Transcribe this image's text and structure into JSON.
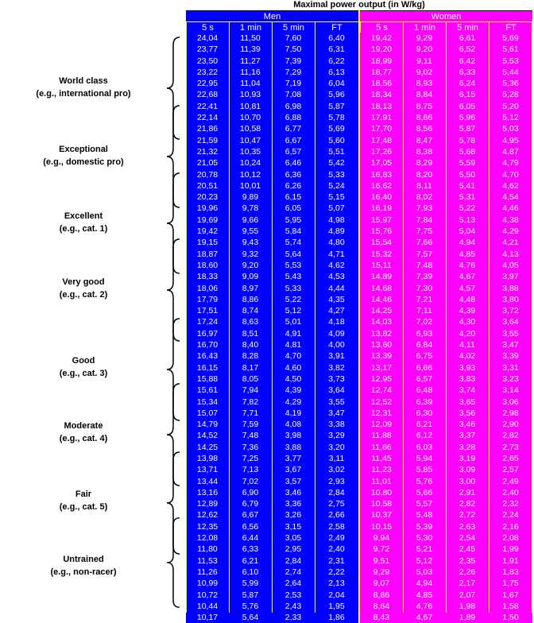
{
  "title": "Maximal power output (in W/kg)",
  "groups": {
    "men": "Men",
    "women": "Women"
  },
  "columns": [
    "5 s",
    "1 min",
    "5 min",
    "FT"
  ],
  "colors": {
    "men": "#0000ff",
    "women": "#ff00ff",
    "grid": "#ffff00"
  },
  "categories": [
    {
      "name": "World class",
      "example": "(e.g., international pro)"
    },
    {
      "name": "Exceptional",
      "example": "(e.g., domestic pro)"
    },
    {
      "name": "Excellent",
      "example": "(e.g., cat. 1)"
    },
    {
      "name": "Very good",
      "example": "(e.g., cat. 2)"
    },
    {
      "name": "Good",
      "example": "(e.g., cat. 3)"
    },
    {
      "name": "Moderate",
      "example": "(e.g., cat. 4)"
    },
    {
      "name": "Fair",
      "example": "(e.g., cat. 5)"
    },
    {
      "name": "Untrained",
      "example": "(e.g., non-racer)"
    }
  ],
  "rows": [
    [
      "24,04",
      "11,50",
      "7,60",
      "6,40",
      "19,42",
      "9,29",
      "6,61",
      "5,69"
    ],
    [
      "23,77",
      "11,39",
      "7,50",
      "6,31",
      "19,20",
      "9,20",
      "6,52",
      "5,61"
    ],
    [
      "23,50",
      "11,27",
      "7,39",
      "6,22",
      "18,99",
      "9,11",
      "6,42",
      "5,53"
    ],
    [
      "23,22",
      "11,16",
      "7,29",
      "6,13",
      "18,77",
      "9,02",
      "6,33",
      "5,44"
    ],
    [
      "22,95",
      "11,04",
      "7,19",
      "6,04",
      "18,56",
      "8,93",
      "6,24",
      "5,36"
    ],
    [
      "22,68",
      "10,93",
      "7,08",
      "5,96",
      "18,34",
      "8,84",
      "6,15",
      "5,28"
    ],
    [
      "22,41",
      "10,81",
      "6,98",
      "5,87",
      "18,13",
      "8,75",
      "6,05",
      "5,20"
    ],
    [
      "22,14",
      "10,70",
      "6,88",
      "5,78",
      "17,91",
      "8,66",
      "5,96",
      "5,12"
    ],
    [
      "21,86",
      "10,58",
      "6,77",
      "5,69",
      "17,70",
      "8,56",
      "5,87",
      "5,03"
    ],
    [
      "21,59",
      "10,47",
      "6,67",
      "5,60",
      "17,48",
      "8,47",
      "5,78",
      "4,95"
    ],
    [
      "21,32",
      "10,35",
      "6,57",
      "5,51",
      "17,26",
      "8,38",
      "5,68",
      "4,87"
    ],
    [
      "21,05",
      "10,24",
      "6,46",
      "5,42",
      "17,05",
      "8,29",
      "5,59",
      "4,79"
    ],
    [
      "20,78",
      "10,12",
      "6,36",
      "5,33",
      "16,83",
      "8,20",
      "5,50",
      "4,70"
    ],
    [
      "20,51",
      "10,01",
      "6,26",
      "5,24",
      "16,62",
      "8,11",
      "5,41",
      "4,62"
    ],
    [
      "20,23",
      "9,89",
      "6,15",
      "5,15",
      "16,40",
      "8,02",
      "5,31",
      "4,54"
    ],
    [
      "19,96",
      "9,78",
      "6,05",
      "5,07",
      "16,19",
      "7,93",
      "5,22",
      "4,46"
    ],
    [
      "19,69",
      "9,66",
      "5,95",
      "4,98",
      "15,97",
      "7,84",
      "5,13",
      "4,38"
    ],
    [
      "19,42",
      "9,55",
      "5,84",
      "4,89",
      "15,76",
      "7,75",
      "5,04",
      "4,29"
    ],
    [
      "19,15",
      "9,43",
      "5,74",
      "4,80",
      "15,54",
      "7,66",
      "4,94",
      "4,21"
    ],
    [
      "18,87",
      "9,32",
      "5,64",
      "4,71",
      "15,32",
      "7,57",
      "4,85",
      "4,13"
    ],
    [
      "18,60",
      "9,20",
      "5,53",
      "4,62",
      "15,11",
      "7,48",
      "4,76",
      "4,05"
    ],
    [
      "18,33",
      "9,09",
      "5,43",
      "4,53",
      "14,89",
      "7,39",
      "4,67",
      "3,97"
    ],
    [
      "18,06",
      "8,97",
      "5,33",
      "4,44",
      "14,68",
      "7,30",
      "4,57",
      "3,88"
    ],
    [
      "17,79",
      "8,86",
      "5,22",
      "4,35",
      "14,46",
      "7,21",
      "4,48",
      "3,80"
    ],
    [
      "17,51",
      "8,74",
      "5,12",
      "4,27",
      "14,25",
      "7,11",
      "4,39",
      "3,72"
    ],
    [
      "17,24",
      "8,63",
      "5,01",
      "4,18",
      "14,03",
      "7,02",
      "4,30",
      "3,64"
    ],
    [
      "16,97",
      "8,51",
      "4,91",
      "4,09",
      "13,82",
      "6,93",
      "4,20",
      "3,55"
    ],
    [
      "16,70",
      "8,40",
      "4,81",
      "4,00",
      "13,60",
      "6,84",
      "4,11",
      "3,47"
    ],
    [
      "16,43",
      "8,28",
      "4,70",
      "3,91",
      "13,39",
      "6,75",
      "4,02",
      "3,39"
    ],
    [
      "16,15",
      "8,17",
      "4,60",
      "3,82",
      "13,17",
      "6,66",
      "3,93",
      "3,31"
    ],
    [
      "15,88",
      "8,05",
      "4,50",
      "3,73",
      "12,95",
      "6,57",
      "3,83",
      "3,23"
    ],
    [
      "15,61",
      "7,94",
      "4,39",
      "3,64",
      "12,74",
      "6,48",
      "3,74",
      "3,14"
    ],
    [
      "15,34",
      "7,82",
      "4,29",
      "3,55",
      "12,52",
      "6,39",
      "3,65",
      "3,06"
    ],
    [
      "15,07",
      "7,71",
      "4,19",
      "3,47",
      "12,31",
      "6,30",
      "3,56",
      "2,98"
    ],
    [
      "14,79",
      "7,59",
      "4,08",
      "3,38",
      "12,09",
      "6,21",
      "3,46",
      "2,90"
    ],
    [
      "14,52",
      "7,48",
      "3,98",
      "3,29",
      "11,88",
      "6,12",
      "3,37",
      "2,82"
    ],
    [
      "14,25",
      "7,36",
      "3,88",
      "3,20",
      "11,66",
      "6,03",
      "3,28",
      "2,73"
    ],
    [
      "13,98",
      "7,25",
      "3,77",
      "3,11",
      "11,45",
      "5,94",
      "3,19",
      "2,65"
    ],
    [
      "13,71",
      "7,13",
      "3,67",
      "3,02",
      "11,23",
      "5,85",
      "3,09",
      "2,57"
    ],
    [
      "13,44",
      "7,02",
      "3,57",
      "2,93",
      "11,01",
      "5,76",
      "3,00",
      "2,49"
    ],
    [
      "13,16",
      "6,90",
      "3,46",
      "2,84",
      "10,80",
      "5,66",
      "2,91",
      "2,40"
    ],
    [
      "12,89",
      "6,79",
      "3,36",
      "2,75",
      "10,58",
      "5,57",
      "2,82",
      "2,32"
    ],
    [
      "12,62",
      "6,67",
      "3,26",
      "2,66",
      "10,37",
      "5,48",
      "2,72",
      "2,24"
    ],
    [
      "12,35",
      "6,56",
      "3,15",
      "2,58",
      "10,15",
      "5,39",
      "2,63",
      "2,16"
    ],
    [
      "12,08",
      "6,44",
      "3,05",
      "2,49",
      "9,94",
      "5,30",
      "2,54",
      "2,08"
    ],
    [
      "11,80",
      "6,33",
      "2,95",
      "2,40",
      "9,72",
      "5,21",
      "2,45",
      "1,99"
    ],
    [
      "11,53",
      "6,21",
      "2,84",
      "2,31",
      "9,51",
      "5,12",
      "2,35",
      "1,91"
    ],
    [
      "11,26",
      "6,10",
      "2,74",
      "2,22",
      "9,29",
      "5,03",
      "2,26",
      "1,83"
    ],
    [
      "10,99",
      "5,99",
      "2,64",
      "2,13",
      "9,07",
      "4,94",
      "2,17",
      "1,75"
    ],
    [
      "10,72",
      "5,87",
      "2,53",
      "2,04",
      "8,86",
      "4,85",
      "2,07",
      "1,67"
    ],
    [
      "10,44",
      "5,76",
      "2,43",
      "1,95",
      "8,64",
      "4,76",
      "1,98",
      "1,58"
    ],
    [
      "10,17",
      "5,64",
      "2,33",
      "1,86",
      "8,43",
      "4,67",
      "1,89",
      "1,50"
    ]
  ]
}
